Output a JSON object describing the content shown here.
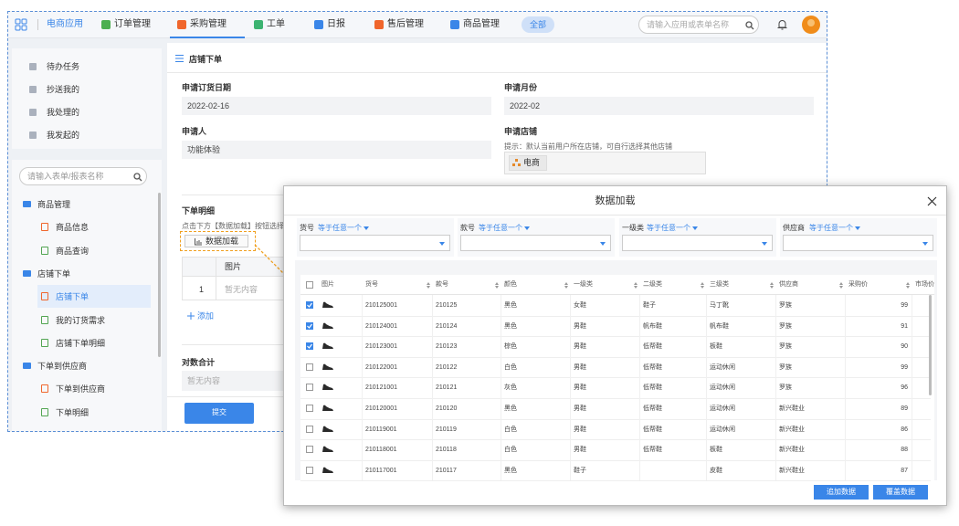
{
  "top_nav": {
    "app": "电商应用",
    "tabs": [
      {
        "label": "订单管理",
        "color": "#4caf50"
      },
      {
        "label": "采购管理",
        "color": "#f0662c",
        "active": true
      },
      {
        "label": "工单",
        "color": "#3cb371"
      },
      {
        "label": "日报",
        "color": "#3a86e8"
      },
      {
        "label": "售后管理",
        "color": "#f0662c"
      },
      {
        "label": "商品管理",
        "color": "#3a86e8"
      }
    ],
    "all": "全部",
    "search_placeholder": "请输入应用或表单名称"
  },
  "sidebar": {
    "quick": [
      "待办任务",
      "抄送我的",
      "我处理的",
      "我发起的"
    ],
    "search_placeholder": "请输入表单/报表名称",
    "groups": [
      {
        "label": "商品管理",
        "items": [
          {
            "label": "商品信息"
          },
          {
            "label": "商品查询"
          }
        ]
      },
      {
        "label": "店铺下单",
        "items": [
          {
            "label": "店铺下单",
            "active": true
          },
          {
            "label": "我的订货需求"
          },
          {
            "label": "店铺下单明细"
          }
        ]
      },
      {
        "label": "下单到供应商",
        "items": [
          {
            "label": "下单到供应商"
          },
          {
            "label": "下单明细"
          }
        ]
      }
    ]
  },
  "form": {
    "title": "店铺下单",
    "fields": [
      {
        "label": "申请订货日期",
        "value": "2022-02-16"
      },
      {
        "label": "申请月份",
        "value": "2022-02"
      },
      {
        "label": "申请人",
        "value": "功能体验"
      },
      {
        "label": "申请店铺",
        "hint": "提示：默认当前用户所在店铺，可自行选择其他店铺",
        "value": "电商"
      }
    ],
    "detail": {
      "title": "下单明细",
      "hint": "点击下方【数据加载】按钮选择商",
      "button": "数据加载",
      "column": "图片",
      "row_index": "1",
      "empty": "暂无内容",
      "add": "添加"
    },
    "total": {
      "label": "对数合计",
      "empty": "暂无内容"
    },
    "submit": "提交"
  },
  "modal": {
    "title": "数据加载",
    "filters": [
      {
        "label": "货号",
        "op": "等于任意一个"
      },
      {
        "label": "款号",
        "op": "等于任意一个"
      },
      {
        "label": "一级类",
        "op": "等于任意一个"
      },
      {
        "label": "供应商",
        "op": "等于任意一个"
      }
    ],
    "columns": [
      "图片",
      "货号",
      "款号",
      "颜色",
      "一级类",
      "二级类",
      "三级类",
      "供应商",
      "采购价",
      "市场价"
    ],
    "rows": [
      {
        "checked": true,
        "cells": [
          "210125001",
          "210125",
          "黑色",
          "女鞋",
          "鞋子",
          "马丁靴",
          "罗族",
          99
        ]
      },
      {
        "checked": true,
        "cells": [
          "210124001",
          "210124",
          "黑色",
          "男鞋",
          "帆布鞋",
          "帆布鞋",
          "罗族",
          91
        ]
      },
      {
        "checked": true,
        "cells": [
          "210123001",
          "210123",
          "棕色",
          "男鞋",
          "低帮鞋",
          "板鞋",
          "罗族",
          90
        ]
      },
      {
        "checked": false,
        "cells": [
          "210122001",
          "210122",
          "白色",
          "男鞋",
          "低帮鞋",
          "运动休闲",
          "罗族",
          99
        ]
      },
      {
        "checked": false,
        "cells": [
          "210121001",
          "210121",
          "灰色",
          "男鞋",
          "低帮鞋",
          "运动休闲",
          "罗族",
          96
        ]
      },
      {
        "checked": false,
        "cells": [
          "210120001",
          "210120",
          "黑色",
          "男鞋",
          "低帮鞋",
          "运动休闲",
          "新兴鞋业",
          89
        ]
      },
      {
        "checked": false,
        "cells": [
          "210119001",
          "210119",
          "白色",
          "男鞋",
          "低帮鞋",
          "运动休闲",
          "新兴鞋业",
          86
        ]
      },
      {
        "checked": false,
        "cells": [
          "210118001",
          "210118",
          "白色",
          "男鞋",
          "低帮鞋",
          "板鞋",
          "新兴鞋业",
          88
        ]
      },
      {
        "checked": false,
        "cells": [
          "210117001",
          "210117",
          "黑色",
          "鞋子",
          null,
          "皮鞋",
          "新兴鞋业",
          87
        ]
      }
    ],
    "buttons": [
      "追加数据",
      "覆盖数据"
    ]
  }
}
